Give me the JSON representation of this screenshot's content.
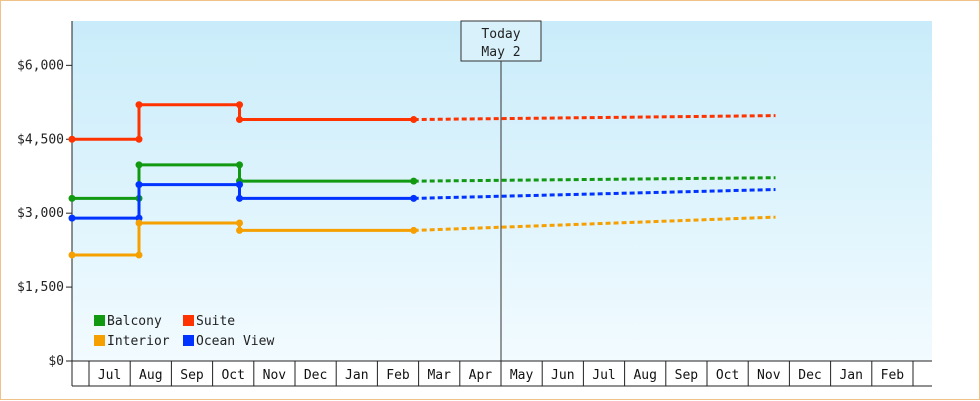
{
  "chart_data": {
    "type": "line",
    "y_tick_labels": [
      "$0",
      "$1,500",
      "$3,000",
      "$4,500",
      "$6,000"
    ],
    "y_ticks": [
      0,
      1500,
      3000,
      4500,
      6000
    ],
    "ylim": [
      0,
      6900
    ],
    "months": [
      "Jul",
      "Aug",
      "Sep",
      "Oct",
      "Nov",
      "Dec",
      "Jan",
      "Feb",
      "Mar",
      "Apr",
      "May",
      "Jun",
      "Jul",
      "Aug",
      "Sep",
      "Oct",
      "Nov",
      "Dec",
      "Jan",
      "Feb"
    ],
    "today_marker": {
      "line1": "Today",
      "line2": "May 2"
    },
    "series": [
      {
        "name": "Suite",
        "color": "#ff3300",
        "history": [
          [
            0,
            4500
          ],
          [
            2,
            4500
          ],
          [
            2,
            5200
          ],
          [
            5,
            5200
          ],
          [
            5,
            4900
          ],
          [
            10.2,
            4900
          ]
        ],
        "forecast": [
          [
            10.2,
            4900
          ],
          [
            21,
            4980
          ]
        ]
      },
      {
        "name": "Balcony",
        "color": "#119911",
        "history": [
          [
            0,
            3300
          ],
          [
            2,
            3300
          ],
          [
            2,
            3980
          ],
          [
            5,
            3980
          ],
          [
            5,
            3650
          ],
          [
            10.2,
            3650
          ]
        ],
        "forecast": [
          [
            10.2,
            3650
          ],
          [
            21,
            3720
          ]
        ]
      },
      {
        "name": "Ocean View",
        "color": "#0033ff",
        "history": [
          [
            0,
            2900
          ],
          [
            2,
            2900
          ],
          [
            2,
            3580
          ],
          [
            5,
            3580
          ],
          [
            5,
            3300
          ],
          [
            10.2,
            3300
          ]
        ],
        "forecast": [
          [
            10.2,
            3300
          ],
          [
            21,
            3480
          ]
        ]
      },
      {
        "name": "Interior",
        "color": "#f5a000",
        "history": [
          [
            0,
            2150
          ],
          [
            2,
            2150
          ],
          [
            2,
            2800
          ],
          [
            5,
            2800
          ],
          [
            5,
            2650
          ],
          [
            10.2,
            2650
          ]
        ],
        "forecast": [
          [
            10.2,
            2650
          ],
          [
            21,
            2920
          ]
        ]
      }
    ],
    "legend": [
      {
        "name": "Balcony",
        "color": "#119911"
      },
      {
        "name": "Suite",
        "color": "#ff3300"
      },
      {
        "name": "Interior",
        "color": "#f5a000"
      },
      {
        "name": "Ocean View",
        "color": "#0033ff"
      }
    ],
    "legend_placement": "bottom-left",
    "grid": false
  }
}
